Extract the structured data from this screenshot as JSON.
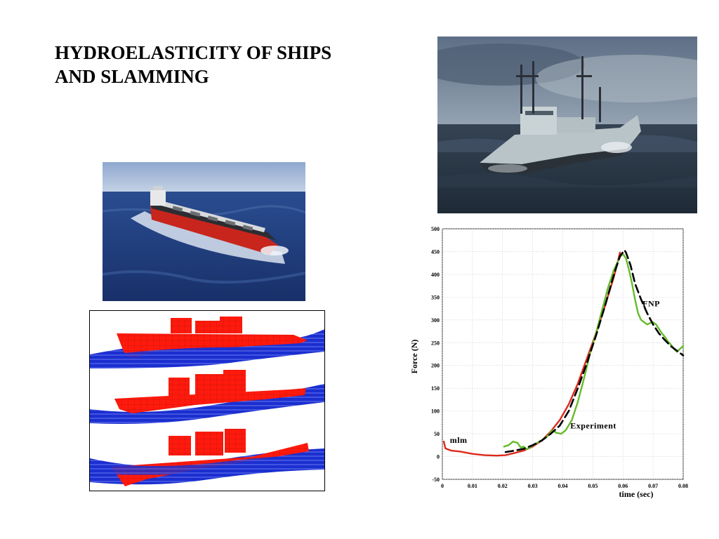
{
  "slide": {
    "title_lines": [
      "HYDROELASTICITY OF SHIPS",
      "AND SLAMMING"
    ]
  },
  "images": {
    "photo_top_right": "ship-in-rough-sea-photo",
    "photo_left": "bulk-carrier-at-sea-photo",
    "hull_panel": "ship-hull-in-waves-render"
  },
  "colors": {
    "mlm": "#dd2a1b",
    "experiment": "#66bb2a",
    "fnp": "#000000",
    "hull": "#ff1a0d",
    "wave": "#1b2fd0"
  },
  "chart_data": {
    "type": "line",
    "title": "",
    "xlabel": "time (sec)",
    "ylabel": "Force (N)",
    "xlim": [
      0,
      0.08
    ],
    "ylim": [
      -50,
      500
    ],
    "xticks": [
      0,
      0.01,
      0.02,
      0.03,
      0.04,
      0.05,
      0.06,
      0.07,
      0.08
    ],
    "xtick_labels": [
      "0",
      "0.01",
      "0.02",
      "0.03",
      "0.04",
      "0.05",
      "0.06",
      "0.07",
      "0.08"
    ],
    "yticks": [
      -50,
      0,
      50,
      100,
      150,
      200,
      250,
      300,
      350,
      400,
      450,
      500
    ],
    "ytick_labels": [
      "-50",
      "0",
      "50",
      "100",
      "150",
      "200",
      "250",
      "300",
      "350",
      "400",
      "450",
      "500"
    ],
    "grid": true,
    "annotations": [
      {
        "text": "mlm",
        "x": 0.0025,
        "y": 30
      },
      {
        "text": "Experiment",
        "x": 0.0425,
        "y": 62
      },
      {
        "text": "FNP",
        "x": 0.0665,
        "y": 330
      }
    ],
    "series": [
      {
        "name": "mlm",
        "style": "solid",
        "color": "#dd2a1b",
        "x": [
          0.0005,
          0.001,
          0.003,
          0.006,
          0.01,
          0.014,
          0.018,
          0.021,
          0.024,
          0.027,
          0.03,
          0.033,
          0.036,
          0.039,
          0.042,
          0.045,
          0.048,
          0.051,
          0.054,
          0.057,
          0.059
        ],
        "y": [
          33,
          18,
          13,
          11,
          6,
          3,
          2,
          3,
          8,
          13,
          22,
          35,
          55,
          80,
          115,
          160,
          215,
          270,
          330,
          395,
          448
        ]
      },
      {
        "name": "Experiment",
        "style": "solid",
        "color": "#66bb2a",
        "x": [
          0.0205,
          0.022,
          0.0235,
          0.025,
          0.026,
          0.027,
          0.028,
          0.029,
          0.031,
          0.033,
          0.035,
          0.0365,
          0.038,
          0.0395,
          0.041,
          0.043,
          0.045,
          0.047,
          0.049,
          0.051,
          0.053,
          0.055,
          0.057,
          0.059,
          0.06,
          0.061,
          0.062,
          0.063,
          0.064,
          0.065,
          0.066,
          0.067,
          0.068,
          0.069,
          0.07,
          0.071,
          0.072,
          0.073,
          0.074,
          0.075,
          0.076,
          0.077,
          0.078,
          0.079,
          0.0795,
          0.08
        ],
        "y": [
          22,
          25,
          33,
          30,
          20,
          22,
          16,
          20,
          28,
          36,
          45,
          58,
          52,
          50,
          58,
          80,
          120,
          170,
          225,
          270,
          320,
          370,
          410,
          438,
          445,
          435,
          410,
          380,
          345,
          315,
          300,
          295,
          290,
          293,
          295,
          290,
          280,
          270,
          262,
          252,
          245,
          236,
          230,
          237,
          240,
          243
        ]
      },
      {
        "name": "FNP",
        "style": "dashed",
        "color": "#000000",
        "x": [
          0.021,
          0.024,
          0.027,
          0.03,
          0.033,
          0.036,
          0.039,
          0.042,
          0.045,
          0.048,
          0.051,
          0.054,
          0.057,
          0.059,
          0.0605,
          0.061,
          0.0625,
          0.064,
          0.066,
          0.068,
          0.07,
          0.072,
          0.074,
          0.076,
          0.078,
          0.08
        ],
        "y": [
          10,
          13,
          17,
          25,
          35,
          50,
          68,
          100,
          150,
          205,
          265,
          330,
          400,
          440,
          453,
          448,
          420,
          380,
          345,
          315,
          290,
          270,
          255,
          242,
          232,
          222
        ]
      }
    ]
  }
}
